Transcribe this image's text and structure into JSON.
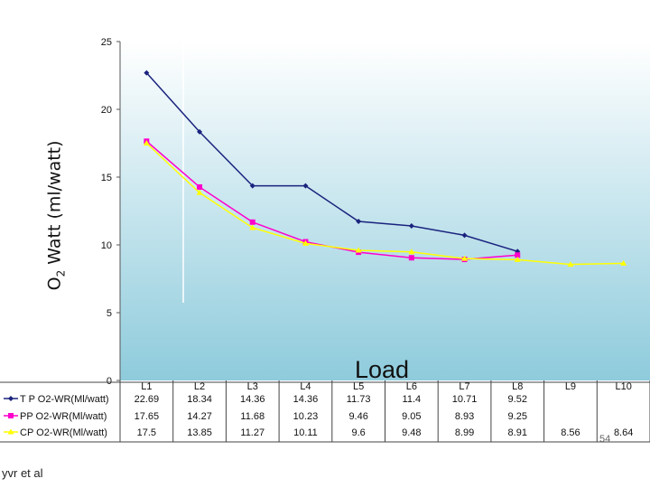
{
  "chart_data": {
    "type": "line",
    "title": "",
    "xlabel": "Load",
    "ylabel_main": "O",
    "ylabel_sub": "2",
    "ylabel_rest": " Watt (ml/watt)",
    "categories": [
      "L1",
      "L2",
      "L3",
      "L4",
      "L5",
      "L6",
      "L7",
      "L8",
      "L9",
      "L10"
    ],
    "ylim": [
      0,
      25
    ],
    "yticks": [
      0,
      5,
      10,
      15,
      20,
      25
    ],
    "grid": false,
    "legend": "data-table",
    "series": [
      {
        "name": "T P O2-WR(Ml/watt)",
        "color": "#1a237e",
        "marker": "diamond",
        "values": [
          22.69,
          18.34,
          14.36,
          14.36,
          11.73,
          11.4,
          10.71,
          9.52,
          null,
          null
        ],
        "labels": [
          "22.69",
          "18.34",
          "14.36",
          "14.36",
          "11.73",
          "11.4",
          "10.71",
          "9.52",
          "",
          ""
        ]
      },
      {
        "name": "PP O2-WR(Ml/watt)",
        "color": "#ff00cc",
        "marker": "square",
        "values": [
          17.65,
          14.27,
          11.68,
          10.23,
          9.46,
          9.05,
          8.93,
          9.25,
          null,
          null
        ],
        "labels": [
          "17.65",
          "14.27",
          "11.68",
          "10.23",
          "9.46",
          "9.05",
          "8.93",
          "9.25",
          "",
          ""
        ]
      },
      {
        "name": "CP O2-WR(Ml/watt)",
        "color": "#ffff00",
        "marker": "triangle",
        "values": [
          17.5,
          13.85,
          11.27,
          10.11,
          9.6,
          9.48,
          8.99,
          8.91,
          8.56,
          8.64
        ],
        "labels": [
          "17.5",
          "13.85",
          "11.27",
          "10.11",
          "9.6",
          "9.48",
          "8.99",
          "8.91",
          "8.56",
          "8.64"
        ]
      }
    ]
  },
  "footer": {
    "credit": "yvr et al",
    "page_number": "54"
  }
}
